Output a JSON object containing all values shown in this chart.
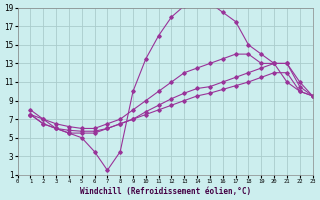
{
  "xlabel": "Windchill (Refroidissement éolien,°C)",
  "bg_color": "#cceeee",
  "grid_color": "#aacccc",
  "line_color": "#993399",
  "xmin": 0,
  "xmax": 23,
  "ymin": 1,
  "ymax": 19,
  "yticks": [
    1,
    3,
    5,
    7,
    9,
    11,
    13,
    15,
    17,
    19
  ],
  "xticks": [
    0,
    1,
    2,
    3,
    4,
    5,
    6,
    7,
    8,
    9,
    10,
    11,
    12,
    13,
    14,
    15,
    16,
    17,
    18,
    19,
    20,
    21,
    22,
    23
  ],
  "line_wave_x": [
    1,
    2,
    3,
    4,
    5,
    6,
    7,
    8,
    9,
    10,
    11,
    12,
    13,
    14,
    15,
    16,
    17,
    18,
    19,
    20,
    21,
    22,
    23
  ],
  "line_wave_y": [
    8,
    7,
    6,
    5.5,
    5,
    3.5,
    1.5,
    3.5,
    10,
    13.5,
    16,
    18,
    19.2,
    19.5,
    19.5,
    18.5,
    17.5,
    15,
    14,
    13,
    11,
    10,
    9.5
  ],
  "line_top_x": [
    1,
    2,
    3,
    4,
    5,
    6,
    7,
    8,
    9,
    10,
    11,
    12,
    13,
    14,
    15,
    16,
    17,
    18,
    19,
    20,
    21,
    22,
    23
  ],
  "line_top_y": [
    7.5,
    7,
    6.5,
    6.2,
    6,
    6,
    6.5,
    7,
    8,
    9,
    10,
    11,
    12,
    12.5,
    13,
    13.5,
    14,
    14,
    13,
    13,
    13,
    11,
    9.5
  ],
  "line_mid_x": [
    1,
    2,
    3,
    4,
    5,
    6,
    7,
    8,
    9,
    10,
    11,
    12,
    13,
    14,
    15,
    16,
    17,
    18,
    19,
    20,
    21,
    22,
    23
  ],
  "line_mid_y": [
    7.5,
    6.5,
    6,
    5.8,
    5.7,
    5.7,
    6,
    6.5,
    7,
    7.8,
    8.5,
    9.2,
    9.8,
    10.3,
    10.5,
    11,
    11.5,
    12,
    12.5,
    13,
    13,
    10.5,
    9.5
  ],
  "line_bot_x": [
    1,
    2,
    3,
    4,
    5,
    6,
    7,
    8,
    9,
    10,
    11,
    12,
    13,
    14,
    15,
    16,
    17,
    18,
    19,
    20,
    21,
    22,
    23
  ],
  "line_bot_y": [
    7.5,
    6.5,
    6,
    5.5,
    5.5,
    5.5,
    6,
    6.5,
    7,
    7.5,
    8,
    8.5,
    9,
    9.5,
    9.8,
    10.2,
    10.6,
    11,
    11.5,
    12,
    12,
    10,
    9.5
  ]
}
